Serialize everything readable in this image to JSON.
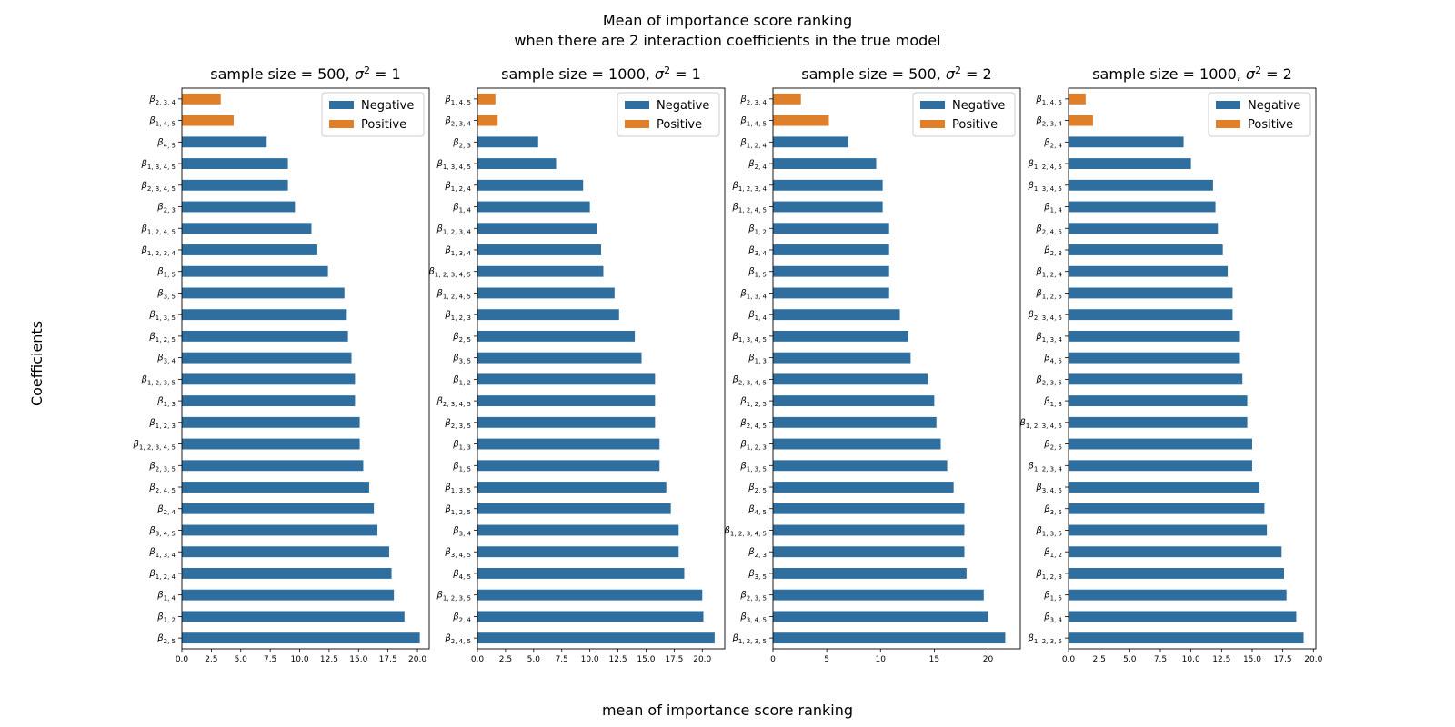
{
  "figure": {
    "title_line1": "Mean of importance score ranking",
    "title_line2": "when there are 2 interaction coefficients in the true model",
    "xlabel": "mean of importance score ranking",
    "ylabel": "Coefficients"
  },
  "colors": {
    "Negative": "#2f6f9f",
    "Positive": "#e07f2a"
  },
  "chart_data": [
    {
      "type": "bar",
      "orientation": "horizontal",
      "title_prefix": "sample size = 500, ",
      "sigma_value": "1",
      "xlim": [
        0,
        21
      ],
      "xticks": [
        0.0,
        2.5,
        5.0,
        7.5,
        10.0,
        12.5,
        15.0,
        17.5,
        20.0
      ],
      "legend": [
        "Negative",
        "Positive"
      ],
      "legend_position": "top-right",
      "bars": [
        {
          "sub": "2, 3, 4",
          "value": 3.3,
          "series": "Positive"
        },
        {
          "sub": "1, 4, 5",
          "value": 4.4,
          "series": "Positive"
        },
        {
          "sub": "4, 5",
          "value": 7.2,
          "series": "Negative"
        },
        {
          "sub": "1, 3, 4, 5",
          "value": 9.0,
          "series": "Negative"
        },
        {
          "sub": "2, 3, 4, 5",
          "value": 9.0,
          "series": "Negative"
        },
        {
          "sub": "2, 3",
          "value": 9.6,
          "series": "Negative"
        },
        {
          "sub": "1, 2, 4, 5",
          "value": 11.0,
          "series": "Negative"
        },
        {
          "sub": "1, 2, 3, 4",
          "value": 11.5,
          "series": "Negative"
        },
        {
          "sub": "1, 5",
          "value": 12.4,
          "series": "Negative"
        },
        {
          "sub": "3, 5",
          "value": 13.8,
          "series": "Negative"
        },
        {
          "sub": "1, 3, 5",
          "value": 14.0,
          "series": "Negative"
        },
        {
          "sub": "1, 2, 5",
          "value": 14.1,
          "series": "Negative"
        },
        {
          "sub": "3, 4",
          "value": 14.4,
          "series": "Negative"
        },
        {
          "sub": "1, 2, 3, 5",
          "value": 14.7,
          "series": "Negative"
        },
        {
          "sub": "1, 3",
          "value": 14.7,
          "series": "Negative"
        },
        {
          "sub": "1, 2, 3",
          "value": 15.1,
          "series": "Negative"
        },
        {
          "sub": "1, 2, 3, 4, 5",
          "value": 15.1,
          "series": "Negative"
        },
        {
          "sub": "2, 3, 5",
          "value": 15.4,
          "series": "Negative"
        },
        {
          "sub": "2, 4, 5",
          "value": 15.9,
          "series": "Negative"
        },
        {
          "sub": "2, 4",
          "value": 16.3,
          "series": "Negative"
        },
        {
          "sub": "3, 4, 5",
          "value": 16.6,
          "series": "Negative"
        },
        {
          "sub": "1, 3, 4",
          "value": 17.6,
          "series": "Negative"
        },
        {
          "sub": "1, 2, 4",
          "value": 17.8,
          "series": "Negative"
        },
        {
          "sub": "1, 4",
          "value": 18.0,
          "series": "Negative"
        },
        {
          "sub": "1, 2",
          "value": 18.9,
          "series": "Negative"
        },
        {
          "sub": "2, 5",
          "value": 20.2,
          "series": "Negative"
        }
      ]
    },
    {
      "type": "bar",
      "orientation": "horizontal",
      "title_prefix": "sample size = 1000, ",
      "sigma_value": "1",
      "xlim": [
        0,
        22
      ],
      "xticks": [
        0.0,
        2.5,
        5.0,
        7.5,
        10.0,
        12.5,
        15.0,
        17.5,
        20.0
      ],
      "legend": [
        "Negative",
        "Positive"
      ],
      "legend_position": "top-right",
      "bars": [
        {
          "sub": "1, 4, 5",
          "value": 1.6,
          "series": "Positive"
        },
        {
          "sub": "2, 3, 4",
          "value": 1.8,
          "series": "Positive"
        },
        {
          "sub": "2, 3",
          "value": 5.4,
          "series": "Negative"
        },
        {
          "sub": "1, 3, 4, 5",
          "value": 7.0,
          "series": "Negative"
        },
        {
          "sub": "1, 2, 4",
          "value": 9.4,
          "series": "Negative"
        },
        {
          "sub": "1, 4",
          "value": 10.0,
          "series": "Negative"
        },
        {
          "sub": "1, 2, 3, 4",
          "value": 10.6,
          "series": "Negative"
        },
        {
          "sub": "1, 3, 4",
          "value": 11.0,
          "series": "Negative"
        },
        {
          "sub": "1, 2, 3, 4, 5",
          "value": 11.2,
          "series": "Negative"
        },
        {
          "sub": "1, 2, 4, 5",
          "value": 12.2,
          "series": "Negative"
        },
        {
          "sub": "1, 2, 3",
          "value": 12.6,
          "series": "Negative"
        },
        {
          "sub": "2, 5",
          "value": 14.0,
          "series": "Negative"
        },
        {
          "sub": "3, 5",
          "value": 14.6,
          "series": "Negative"
        },
        {
          "sub": "1, 2",
          "value": 15.8,
          "series": "Negative"
        },
        {
          "sub": "2, 3, 4, 5",
          "value": 15.8,
          "series": "Negative"
        },
        {
          "sub": "2, 3, 5",
          "value": 15.8,
          "series": "Negative"
        },
        {
          "sub": "1, 3",
          "value": 16.2,
          "series": "Negative"
        },
        {
          "sub": "1, 5",
          "value": 16.2,
          "series": "Negative"
        },
        {
          "sub": "1, 3, 5",
          "value": 16.8,
          "series": "Negative"
        },
        {
          "sub": "1, 2, 5",
          "value": 17.2,
          "series": "Negative"
        },
        {
          "sub": "3, 4",
          "value": 17.9,
          "series": "Negative"
        },
        {
          "sub": "3, 4, 5",
          "value": 17.9,
          "series": "Negative"
        },
        {
          "sub": "4, 5",
          "value": 18.4,
          "series": "Negative"
        },
        {
          "sub": "1, 2, 3, 5",
          "value": 20.0,
          "series": "Negative"
        },
        {
          "sub": "2, 4",
          "value": 20.1,
          "series": "Negative"
        },
        {
          "sub": "2, 4, 5",
          "value": 21.1,
          "series": "Negative"
        }
      ]
    },
    {
      "type": "bar",
      "orientation": "horizontal",
      "title_prefix": "sample size = 500, ",
      "sigma_value": "2",
      "xlim": [
        0,
        23
      ],
      "xticks": [
        0,
        5,
        10,
        15,
        20
      ],
      "legend": [
        "Negative",
        "Positive"
      ],
      "legend_position": "top-right",
      "bars": [
        {
          "sub": "2, 3, 4",
          "value": 2.6,
          "series": "Positive"
        },
        {
          "sub": "1, 4, 5",
          "value": 5.2,
          "series": "Positive"
        },
        {
          "sub": "1, 2, 4",
          "value": 7.0,
          "series": "Negative"
        },
        {
          "sub": "2, 4",
          "value": 9.6,
          "series": "Negative"
        },
        {
          "sub": "1, 2, 3, 4",
          "value": 10.2,
          "series": "Negative"
        },
        {
          "sub": "1, 2, 4, 5",
          "value": 10.2,
          "series": "Negative"
        },
        {
          "sub": "1, 2",
          "value": 10.8,
          "series": "Negative"
        },
        {
          "sub": "3, 4",
          "value": 10.8,
          "series": "Negative"
        },
        {
          "sub": "1, 5",
          "value": 10.8,
          "series": "Negative"
        },
        {
          "sub": "1, 3, 4",
          "value": 10.8,
          "series": "Negative"
        },
        {
          "sub": "1, 4",
          "value": 11.8,
          "series": "Negative"
        },
        {
          "sub": "1, 3, 4, 5",
          "value": 12.6,
          "series": "Negative"
        },
        {
          "sub": "1, 3",
          "value": 12.8,
          "series": "Negative"
        },
        {
          "sub": "2, 3, 4, 5",
          "value": 14.4,
          "series": "Negative"
        },
        {
          "sub": "1, 2, 5",
          "value": 15.0,
          "series": "Negative"
        },
        {
          "sub": "2, 4, 5",
          "value": 15.2,
          "series": "Negative"
        },
        {
          "sub": "1, 2, 3",
          "value": 15.6,
          "series": "Negative"
        },
        {
          "sub": "1, 3, 5",
          "value": 16.2,
          "series": "Negative"
        },
        {
          "sub": "2, 5",
          "value": 16.8,
          "series": "Negative"
        },
        {
          "sub": "4, 5",
          "value": 17.8,
          "series": "Negative"
        },
        {
          "sub": "1, 2, 3, 4, 5",
          "value": 17.8,
          "series": "Negative"
        },
        {
          "sub": "2, 3",
          "value": 17.8,
          "series": "Negative"
        },
        {
          "sub": "3, 5",
          "value": 18.0,
          "series": "Negative"
        },
        {
          "sub": "2, 3, 5",
          "value": 19.6,
          "series": "Negative"
        },
        {
          "sub": "3, 4, 5",
          "value": 20.0,
          "series": "Negative"
        },
        {
          "sub": "1, 2, 3, 5",
          "value": 21.6,
          "series": "Negative"
        }
      ]
    },
    {
      "type": "bar",
      "orientation": "horizontal",
      "title_prefix": "sample size = 1000, ",
      "sigma_value": "2",
      "xlim": [
        0,
        20.2
      ],
      "xticks": [
        0.0,
        2.5,
        5.0,
        7.5,
        10.0,
        12.5,
        15.0,
        17.5,
        20.0
      ],
      "legend": [
        "Negative",
        "Positive"
      ],
      "legend_position": "top-right",
      "bars": [
        {
          "sub": "1, 4, 5",
          "value": 1.4,
          "series": "Positive"
        },
        {
          "sub": "2, 3, 4",
          "value": 2.0,
          "series": "Positive"
        },
        {
          "sub": "2, 4",
          "value": 9.4,
          "series": "Negative"
        },
        {
          "sub": "1, 2, 4, 5",
          "value": 10.0,
          "series": "Negative"
        },
        {
          "sub": "1, 3, 4, 5",
          "value": 11.8,
          "series": "Negative"
        },
        {
          "sub": "1, 4",
          "value": 12.0,
          "series": "Negative"
        },
        {
          "sub": "2, 4, 5",
          "value": 12.2,
          "series": "Negative"
        },
        {
          "sub": "2, 3",
          "value": 12.6,
          "series": "Negative"
        },
        {
          "sub": "1, 2, 4",
          "value": 13.0,
          "series": "Negative"
        },
        {
          "sub": "1, 2, 5",
          "value": 13.4,
          "series": "Negative"
        },
        {
          "sub": "2, 3, 4, 5",
          "value": 13.4,
          "series": "Negative"
        },
        {
          "sub": "1, 3, 4",
          "value": 14.0,
          "series": "Negative"
        },
        {
          "sub": "4, 5",
          "value": 14.0,
          "series": "Negative"
        },
        {
          "sub": "2, 3, 5",
          "value": 14.2,
          "series": "Negative"
        },
        {
          "sub": "1, 3",
          "value": 14.6,
          "series": "Negative"
        },
        {
          "sub": "1, 2, 3, 4, 5",
          "value": 14.6,
          "series": "Negative"
        },
        {
          "sub": "2, 5",
          "value": 15.0,
          "series": "Negative"
        },
        {
          "sub": "1, 2, 3, 4",
          "value": 15.0,
          "series": "Negative"
        },
        {
          "sub": "3, 4, 5",
          "value": 15.6,
          "series": "Negative"
        },
        {
          "sub": "3, 5",
          "value": 16.0,
          "series": "Negative"
        },
        {
          "sub": "1, 3, 5",
          "value": 16.2,
          "series": "Negative"
        },
        {
          "sub": "1, 2",
          "value": 17.4,
          "series": "Negative"
        },
        {
          "sub": "1, 2, 3",
          "value": 17.6,
          "series": "Negative"
        },
        {
          "sub": "1, 5",
          "value": 17.8,
          "series": "Negative"
        },
        {
          "sub": "3, 4",
          "value": 18.6,
          "series": "Negative"
        },
        {
          "sub": "1, 2, 3, 5",
          "value": 19.2,
          "series": "Negative"
        }
      ]
    }
  ]
}
